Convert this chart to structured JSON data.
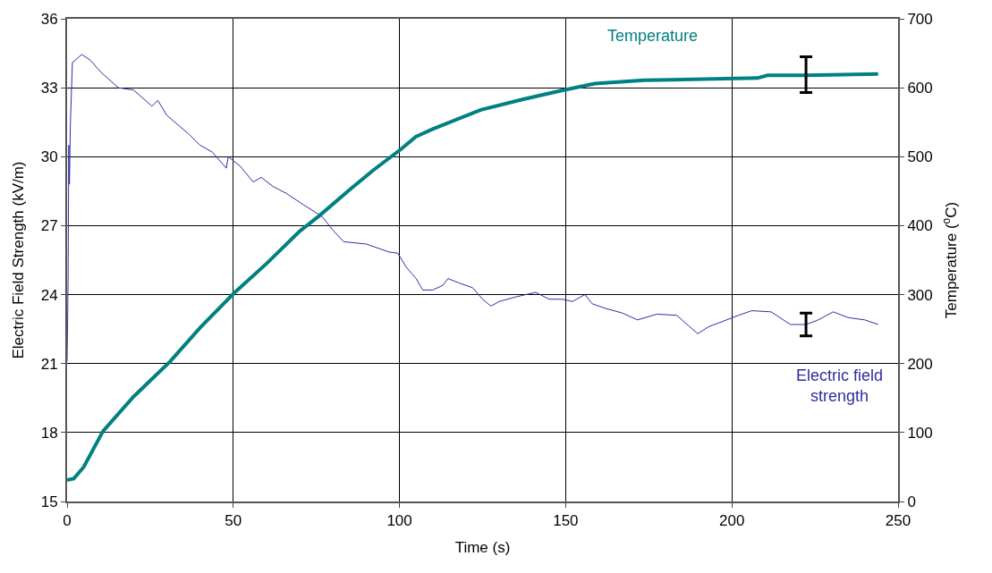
{
  "chart_data": {
    "type": "line",
    "xlabel": "Time (s)",
    "ylabel": "Electric Field Strength (kV/m)",
    "y2label": "Temperature ($^{o}$C)",
    "xlim": [
      0,
      250
    ],
    "xticks": [
      0,
      50,
      100,
      150,
      200,
      250
    ],
    "ylim": [
      15,
      36
    ],
    "yticks": [
      15,
      18,
      21,
      24,
      27,
      30,
      33,
      36
    ],
    "y2lim": [
      0,
      700
    ],
    "y2ticks": [
      0,
      100,
      200,
      300,
      400,
      500,
      600,
      700
    ],
    "grid": true,
    "legend": false,
    "marker": "none",
    "line_style": "solid",
    "series": [
      {
        "name": "Electric field strength",
        "color": "#2e2e9e",
        "x": [
          0,
          0.3,
          0.5,
          0.7,
          1,
          1.6,
          2.5,
          4.4,
          7,
          10,
          15.4,
          20,
          25.5,
          27.3,
          30,
          36.5,
          40,
          43.7,
          47.9,
          48.5,
          52,
          56,
          58.4,
          62,
          66,
          71.2,
          76.7,
          80,
          83.2,
          90,
          96.9,
          99.5,
          102,
          105,
          107,
          110,
          113,
          114.6,
          118,
          122,
          125,
          127.5,
          130,
          135,
          141,
          145,
          149,
          152,
          155.8,
          158,
          162,
          167,
          171.6,
          177.5,
          183.4,
          189.7,
          193,
          197.5,
          202,
          206,
          211.8,
          217.6,
          222.3,
          226,
          230.5,
          235,
          240,
          244
        ],
        "values": [
          21.1,
          24.5,
          30.5,
          28.8,
          31.5,
          34.1,
          34.2,
          34.45,
          34.2,
          33.7,
          33.0,
          32.9,
          32.2,
          32.45,
          31.8,
          31.0,
          30.5,
          30.2,
          29.5,
          30.0,
          29.6,
          28.9,
          29.1,
          28.7,
          28.4,
          27.9,
          27.4,
          26.8,
          26.3,
          26.2,
          25.85,
          25.8,
          25.2,
          24.7,
          24.2,
          24.2,
          24.4,
          24.7,
          24.5,
          24.3,
          23.8,
          23.5,
          23.7,
          23.9,
          24.1,
          23.8,
          23.8,
          23.7,
          24.0,
          23.6,
          23.4,
          23.2,
          22.9,
          23.15,
          23.1,
          22.3,
          22.6,
          22.85,
          23.1,
          23.3,
          23.25,
          22.7,
          22.7,
          22.9,
          23.25,
          23.0,
          22.9,
          22.7
        ],
        "errors": [
          null,
          null,
          null,
          null,
          null,
          null,
          null,
          null,
          null,
          null,
          null,
          null,
          null,
          null,
          null,
          null,
          null,
          null,
          null,
          null,
          null,
          null,
          null,
          null,
          null,
          null,
          null,
          null,
          null,
          null,
          null,
          null,
          null,
          null,
          null,
          null,
          null,
          null,
          null,
          null,
          null,
          null,
          null,
          null,
          null,
          null,
          null,
          null,
          null,
          null,
          null,
          null,
          null,
          null,
          null,
          null,
          null,
          null,
          null,
          null,
          null,
          null,
          [
            22.2,
            23.2
          ],
          null,
          null,
          null,
          null,
          null
        ]
      },
      {
        "name": "Temperature",
        "color": "#008080",
        "axis": "y2",
        "x": [
          0,
          2,
          5,
          10.8,
          20,
          31,
          40,
          50.2,
          60,
          70,
          75.8,
          85,
          92,
          100.5,
          104.9,
          110,
          124.5,
          137,
          148.8,
          158.8,
          173.5,
          198,
          207.7,
          210.7,
          222.3,
          244
        ],
        "values": [
          31,
          33,
          50,
          102,
          152,
          203,
          252,
          302,
          345,
          392,
          414,
          452,
          480,
          511,
          529,
          540,
          568,
          583,
          596,
          606,
          611,
          613,
          614,
          618,
          618,
          620
        ],
        "errors": [
          null,
          null,
          null,
          null,
          null,
          null,
          null,
          null,
          null,
          null,
          null,
          null,
          null,
          null,
          null,
          null,
          null,
          null,
          null,
          null,
          null,
          null,
          null,
          null,
          [
            593,
            645
          ],
          null
        ]
      }
    ]
  }
}
